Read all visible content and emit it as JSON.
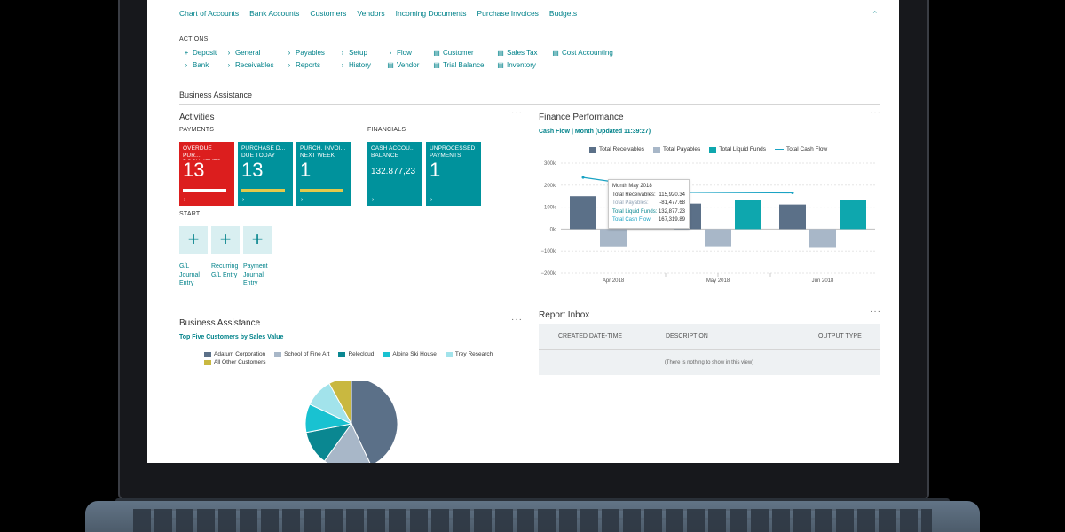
{
  "nav": {
    "links": [
      "Chart of Accounts",
      "Bank Accounts",
      "Customers",
      "Vendors",
      "Incoming Documents",
      "Purchase Invoices",
      "Budgets"
    ],
    "collapse_glyph": "⌃"
  },
  "actions": {
    "label": "ACTIONS",
    "row1": [
      {
        "icon": "+",
        "label": "Deposit"
      },
      {
        "icon": "›",
        "label": "General"
      },
      {
        "icon": "›",
        "label": "Payables"
      },
      {
        "icon": "›",
        "label": "Setup"
      },
      {
        "icon": "›",
        "label": "Flow"
      },
      {
        "icon": "▤",
        "label": "Customer"
      },
      {
        "icon": "▤",
        "label": "Sales Tax"
      },
      {
        "icon": "▤",
        "label": "Cost Accounting"
      }
    ],
    "row2": [
      {
        "icon": "›",
        "label": "Bank"
      },
      {
        "icon": "›",
        "label": "Receivables"
      },
      {
        "icon": "›",
        "label": "Reports"
      },
      {
        "icon": "›",
        "label": "History"
      },
      {
        "icon": "▤",
        "label": "Vendor"
      },
      {
        "icon": "▤",
        "label": "Trial Balance"
      },
      {
        "icon": "▤",
        "label": "Inventory"
      }
    ]
  },
  "page_title": "Business Assistance",
  "activities": {
    "title": "Activities",
    "more": "···",
    "payments_label": "PAYMENTS",
    "financials_label": "FINANCIALS",
    "tiles": [
      {
        "label": "OVERDUE PUR... DOCUMENTS",
        "value": "13",
        "color": "#dc1e1e",
        "progress": 0.9
      },
      {
        "label": "PURCHASE D... DUE TODAY",
        "value": "13",
        "color": "#00929c",
        "progress": 0.9
      },
      {
        "label": "PURCH. INVOI... NEXT WEEK",
        "value": "1",
        "color": "#00929c",
        "progress": 0.9
      },
      {
        "label": "CASH ACCOU... BALANCE",
        "value": "132.877,23",
        "color": "#00929c",
        "progress": 0.0
      },
      {
        "label": "UNPROCESSED PAYMENTS",
        "value": "1",
        "color": "#00929c",
        "progress": 0.0
      }
    ],
    "tile_arrow": "›",
    "start_label": "START",
    "start_items": [
      {
        "icon": "+",
        "label": [
          "G/L",
          "Journal",
          "Entry"
        ]
      },
      {
        "icon": "+",
        "label": [
          "Recurring",
          "G/L Entry"
        ]
      },
      {
        "icon": "+",
        "label": [
          "Payment",
          "Journal",
          "Entry"
        ]
      }
    ]
  },
  "finance": {
    "title": "Finance Performance",
    "more": "···",
    "subtitle": "Cash Flow | Month (Updated 11:39:27)",
    "tooltip": {
      "title": "Month May 2018",
      "rows": [
        {
          "label": "Total Receivables:",
          "value": "115,920.34"
        },
        {
          "label": "Total Payables:",
          "value": "-81,477.68"
        },
        {
          "label": "Total Liquid Funds:",
          "value": "132,877.23"
        },
        {
          "label": "Total Cash Flow:",
          "value": "167,319.89"
        }
      ]
    }
  },
  "chart_data": {
    "type": "bar",
    "categories": [
      "Apr 2018",
      "May 2018",
      "Jun 2018"
    ],
    "series": [
      {
        "name": "Total Receivables",
        "type": "bar",
        "color": "#5b7088",
        "values": [
          150000,
          115920.34,
          112000
        ]
      },
      {
        "name": "Total Payables",
        "type": "bar",
        "color": "#a8b7c8",
        "values": [
          -82000,
          -81477.68,
          -85000
        ]
      },
      {
        "name": "Total Liquid Funds",
        "type": "bar",
        "color": "#0ea7ae",
        "values": [
          null,
          132877.23,
          132877.23
        ]
      },
      {
        "name": "Total Cash Flow",
        "type": "line",
        "color": "#1aa3c4",
        "values": [
          235000,
          167319.89,
          165000
        ]
      }
    ],
    "yticks": [
      "300k",
      "200k",
      "100k",
      "0k",
      "−100k",
      "−200k"
    ],
    "ylim": [
      -200000,
      300000
    ],
    "legend": "top"
  },
  "business": {
    "title": "Business Assistance",
    "more": "···",
    "subtitle": "Top Five Customers by Sales Value",
    "pie": {
      "type": "pie",
      "slices": [
        {
          "name": "Adatum Corporation",
          "color": "#5b7088",
          "value": 43
        },
        {
          "name": "School of Fine Art",
          "color": "#a8b7c8",
          "value": 17
        },
        {
          "name": "Relecloud",
          "color": "#0a8791",
          "value": 12
        },
        {
          "name": "Alpine Ski House",
          "color": "#19c2d1",
          "value": 10
        },
        {
          "name": "Trey Research",
          "color": "#a2e3eb",
          "value": 10
        },
        {
          "name": "All Other Customers",
          "color": "#c9b840",
          "value": 8
        }
      ]
    }
  },
  "inbox": {
    "title": "Report Inbox",
    "more": "···",
    "columns": [
      "CREATED DATE-TIME",
      "DESCRIPTION",
      "OUTPUT TYPE"
    ],
    "empty_text": "(There is nothing to show in this view)"
  }
}
